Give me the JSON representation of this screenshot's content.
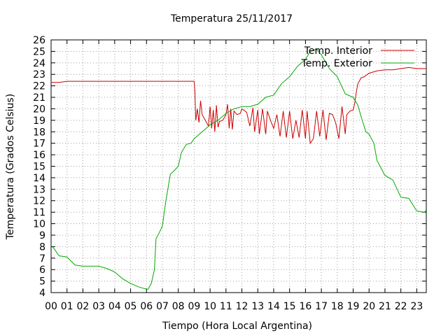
{
  "chart_data": {
    "type": "line",
    "title": "Temperatura 25/11/2017",
    "xlabel": "Tiempo (Hora Local Argentina)",
    "ylabel": "Temperatura (Grados Celsius)",
    "xlim": [
      0,
      23.6
    ],
    "ylim": [
      4,
      26
    ],
    "grid": true,
    "legend_position": "top-right",
    "x_ticks": [
      {
        "value": 0,
        "label": "00"
      },
      {
        "value": 1,
        "label": "01"
      },
      {
        "value": 2,
        "label": "02"
      },
      {
        "value": 3,
        "label": "03"
      },
      {
        "value": 4,
        "label": "04"
      },
      {
        "value": 5,
        "label": "05"
      },
      {
        "value": 6,
        "label": "06"
      },
      {
        "value": 7,
        "label": "07"
      },
      {
        "value": 8,
        "label": "08"
      },
      {
        "value": 9,
        "label": "09"
      },
      {
        "value": 10,
        "label": "10"
      },
      {
        "value": 11,
        "label": "11"
      },
      {
        "value": 12,
        "label": "12"
      },
      {
        "value": 13,
        "label": "13"
      },
      {
        "value": 14,
        "label": "14"
      },
      {
        "value": 15,
        "label": "15"
      },
      {
        "value": 16,
        "label": "16"
      },
      {
        "value": 17,
        "label": "17"
      },
      {
        "value": 18,
        "label": "18"
      },
      {
        "value": 19,
        "label": "19"
      },
      {
        "value": 20,
        "label": "20"
      },
      {
        "value": 21,
        "label": "21"
      },
      {
        "value": 22,
        "label": "22"
      },
      {
        "value": 23,
        "label": "23"
      }
    ],
    "y_ticks": [
      4,
      5,
      6,
      7,
      8,
      9,
      10,
      11,
      12,
      13,
      14,
      15,
      16,
      17,
      18,
      19,
      20,
      21,
      22,
      23,
      24,
      25,
      26
    ],
    "series": [
      {
        "name": "Temp. Interior",
        "color": "#cc0000",
        "x": [
          0,
          0.5,
          1,
          1.5,
          2,
          3,
          4,
          5,
          6,
          7,
          8,
          9.0,
          9.05,
          9.1,
          9.2,
          9.3,
          9.4,
          9.5,
          9.7,
          9.9,
          10.0,
          10.1,
          10.2,
          10.3,
          10.4,
          10.5,
          10.6,
          10.8,
          11.0,
          11.1,
          11.2,
          11.3,
          11.4,
          11.5,
          11.7,
          11.9,
          12.0,
          12.2,
          12.3,
          12.5,
          12.7,
          12.8,
          13.0,
          13.1,
          13.3,
          13.5,
          13.6,
          13.8,
          14.0,
          14.2,
          14.4,
          14.6,
          14.8,
          15.0,
          15.2,
          15.4,
          15.6,
          15.8,
          16.0,
          16.1,
          16.3,
          16.5,
          16.7,
          16.9,
          17.1,
          17.3,
          17.5,
          17.7,
          17.9,
          18.1,
          18.3,
          18.5,
          18.6,
          18.8,
          19.0,
          19.1,
          19.2,
          19.3,
          19.5,
          19.7,
          20.0,
          20.5,
          21.0,
          21.5,
          22.0,
          22.5,
          23.0,
          23.3,
          23.6
        ],
        "values": [
          22.3,
          22.3,
          22.4,
          22.4,
          22.4,
          22.4,
          22.4,
          22.4,
          22.4,
          22.4,
          22.4,
          22.4,
          21.5,
          19.0,
          20.0,
          18.8,
          20.7,
          19.5,
          19.0,
          18.5,
          20.2,
          18.3,
          19.9,
          18.0,
          20.3,
          18.4,
          18.9,
          19.0,
          19.5,
          20.4,
          18.3,
          20.0,
          18.2,
          19.8,
          19.5,
          19.6,
          20.0,
          19.8,
          19.7,
          18.5,
          20.1,
          18.0,
          19.9,
          17.8,
          20.0,
          17.8,
          19.8,
          19.0,
          18.3,
          19.5,
          17.6,
          19.8,
          17.5,
          19.8,
          17.4,
          19.0,
          17.5,
          19.9,
          17.4,
          19.8,
          17.0,
          17.4,
          19.8,
          17.6,
          19.9,
          17.3,
          19.6,
          19.5,
          18.8,
          17.4,
          20.2,
          17.8,
          19.5,
          19.8,
          19.9,
          20.5,
          21.5,
          22.2,
          22.7,
          22.8,
          23.1,
          23.3,
          23.4,
          23.4,
          23.5,
          23.6,
          23.5,
          23.5,
          23.5
        ]
      },
      {
        "name": "Temp. Exterior",
        "color": "#00aa00",
        "x": [
          0,
          0.2,
          0.5,
          1.0,
          1.5,
          2.0,
          2.5,
          3.0,
          3.5,
          4.0,
          4.5,
          5.0,
          5.5,
          6.0,
          6.1,
          6.3,
          6.5,
          6.6,
          6.8,
          7.0,
          7.2,
          7.5,
          7.8,
          8.0,
          8.2,
          8.5,
          8.8,
          9.0,
          9.5,
          10.0,
          10.5,
          11.0,
          11.5,
          12.0,
          12.5,
          13.0,
          13.5,
          14.0,
          14.5,
          15.0,
          15.5,
          16.0,
          16.3,
          16.7,
          17.0,
          17.5,
          18.0,
          18.5,
          19.0,
          19.3,
          19.5,
          19.8,
          20.0,
          20.3,
          20.5,
          21.0,
          21.5,
          22.0,
          22.5,
          23.0,
          23.5,
          23.6
        ],
        "values": [
          8.1,
          7.8,
          7.2,
          7.1,
          6.4,
          6.3,
          6.3,
          6.3,
          6.1,
          5.8,
          5.2,
          4.8,
          4.5,
          4.3,
          4.3,
          4.8,
          6.0,
          8.7,
          9.2,
          9.8,
          11.8,
          14.3,
          14.7,
          15.0,
          16.2,
          16.9,
          17.0,
          17.4,
          18.0,
          18.6,
          19.0,
          19.6,
          20.0,
          20.2,
          20.2,
          20.4,
          21.0,
          21.2,
          22.2,
          22.8,
          23.7,
          24.3,
          25.0,
          25.2,
          24.7,
          23.5,
          22.8,
          21.3,
          21.0,
          20.3,
          19.3,
          18.0,
          17.8,
          17.0,
          15.5,
          14.2,
          13.8,
          12.3,
          12.2,
          11.1,
          11.0,
          11.2
        ]
      }
    ]
  }
}
